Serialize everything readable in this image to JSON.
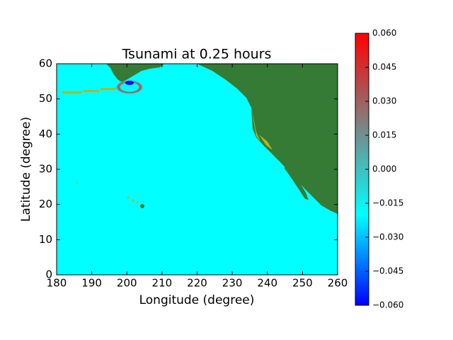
{
  "chart_data": {
    "type": "heatmap",
    "title": "Tsunami at 0.25 hours",
    "x_label": "Longitude (degree)",
    "y_label": "Latitude (degree)",
    "xlim": [
      180,
      260
    ],
    "xticks": [
      180,
      190,
      200,
      210,
      220,
      230,
      240,
      250,
      260
    ],
    "ylim": [
      0,
      60
    ],
    "yticks": [
      0,
      10,
      20,
      30,
      40,
      50,
      60
    ],
    "ocean_color": "#00ffff",
    "land_color": "#357a35",
    "colorbar": {
      "lim": [
        -0.06,
        0.06
      ],
      "colors": [
        "#0000ff",
        "#0080ff",
        "#00ffff",
        "#40c0c0",
        "#808080",
        "#c04040",
        "#ff0000"
      ],
      "ticks": [
        {
          "value": -0.06,
          "label": "−0.060"
        },
        {
          "value": -0.045,
          "label": "−0.045"
        },
        {
          "value": -0.03,
          "label": "−0.030"
        },
        {
          "value": -0.015,
          "label": "−0.015"
        },
        {
          "value": 0,
          "label": "0.000"
        },
        {
          "value": 0.015,
          "label": "0.015"
        },
        {
          "value": 0.03,
          "label": "0.030"
        },
        {
          "value": 0.045,
          "label": "0.045"
        },
        {
          "value": 0.06,
          "label": "0.060"
        }
      ]
    }
  }
}
